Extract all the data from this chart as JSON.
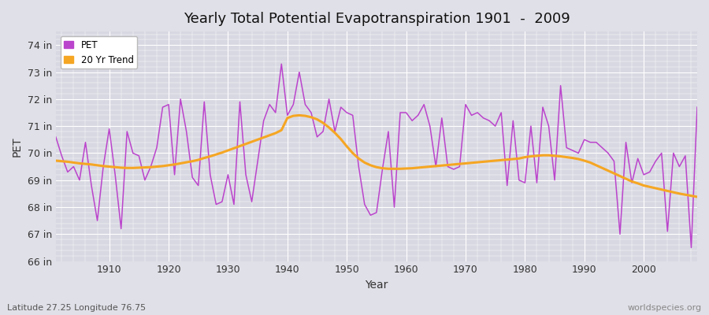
{
  "title": "Yearly Total Potential Evapotranspiration 1901  -  2009",
  "xlabel": "Year",
  "ylabel": "PET",
  "lat_lon_label": "Latitude 27.25 Longitude 76.75",
  "watermark": "worldspecies.org",
  "pet_color": "#bb44cc",
  "trend_color": "#f5a623",
  "bg_color": "#e0e0e8",
  "plot_bg_color": "#d8d8e2",
  "ylim": [
    66,
    74.5
  ],
  "xlim": [
    1901,
    2009
  ],
  "ytick_labels": [
    "66 in",
    "67 in",
    "68 in",
    "69 in",
    "70 in",
    "71 in",
    "72 in",
    "73 in",
    "74 in"
  ],
  "ytick_vals": [
    66,
    67,
    68,
    69,
    70,
    71,
    72,
    73,
    74
  ],
  "xtick_vals": [
    1910,
    1920,
    1930,
    1940,
    1950,
    1960,
    1970,
    1980,
    1990,
    2000
  ],
  "years": [
    1901,
    1902,
    1903,
    1904,
    1905,
    1906,
    1907,
    1908,
    1909,
    1910,
    1911,
    1912,
    1913,
    1914,
    1915,
    1916,
    1917,
    1918,
    1919,
    1920,
    1921,
    1922,
    1923,
    1924,
    1925,
    1926,
    1927,
    1928,
    1929,
    1930,
    1931,
    1932,
    1933,
    1934,
    1935,
    1936,
    1937,
    1938,
    1939,
    1940,
    1941,
    1942,
    1943,
    1944,
    1945,
    1946,
    1947,
    1948,
    1949,
    1950,
    1951,
    1952,
    1953,
    1954,
    1955,
    1956,
    1957,
    1958,
    1959,
    1960,
    1961,
    1962,
    1963,
    1964,
    1965,
    1966,
    1967,
    1968,
    1969,
    1970,
    1971,
    1972,
    1973,
    1974,
    1975,
    1976,
    1977,
    1978,
    1979,
    1980,
    1981,
    1982,
    1983,
    1984,
    1985,
    1986,
    1987,
    1988,
    1989,
    1990,
    1991,
    1992,
    1993,
    1994,
    1995,
    1996,
    1997,
    1998,
    1999,
    2000,
    2001,
    2002,
    2003,
    2004,
    2005,
    2006,
    2007,
    2008,
    2009
  ],
  "pet_values": [
    70.6,
    69.9,
    69.3,
    69.5,
    69.0,
    70.4,
    68.8,
    67.5,
    69.5,
    70.9,
    69.2,
    67.2,
    70.8,
    70.0,
    69.9,
    69.0,
    69.5,
    70.2,
    71.7,
    71.8,
    69.2,
    72.0,
    70.8,
    69.1,
    68.8,
    71.9,
    69.2,
    68.1,
    68.2,
    69.2,
    68.1,
    71.9,
    69.2,
    68.2,
    69.7,
    71.2,
    71.8,
    71.5,
    73.3,
    71.4,
    71.8,
    73.0,
    71.8,
    71.5,
    70.6,
    70.8,
    72.0,
    70.8,
    71.7,
    71.5,
    71.4,
    69.5,
    68.1,
    67.7,
    67.8,
    69.4,
    70.8,
    68.0,
    71.5,
    71.5,
    71.2,
    71.4,
    71.8,
    71.0,
    69.5,
    71.3,
    69.5,
    69.4,
    69.5,
    71.8,
    71.4,
    71.5,
    71.3,
    71.2,
    71.0,
    71.5,
    68.8,
    71.2,
    69.0,
    68.9,
    71.0,
    68.9,
    71.7,
    71.0,
    69.0,
    72.5,
    70.2,
    70.1,
    70.0,
    70.5,
    70.4,
    70.4,
    70.2,
    70.0,
    69.7,
    67.0,
    70.4,
    68.9,
    69.8,
    69.2,
    69.3,
    69.7,
    70.0,
    67.1,
    70.0,
    69.5,
    69.9,
    66.5,
    71.7
  ],
  "trend_values": [
    69.72,
    69.7,
    69.68,
    69.65,
    69.62,
    69.6,
    69.58,
    69.55,
    69.52,
    69.5,
    69.48,
    69.46,
    69.45,
    69.45,
    69.46,
    69.47,
    69.48,
    69.5,
    69.52,
    69.55,
    69.58,
    69.62,
    69.66,
    69.7,
    69.75,
    69.82,
    69.88,
    69.95,
    70.02,
    70.1,
    70.18,
    70.26,
    70.34,
    70.42,
    70.5,
    70.58,
    70.66,
    70.74,
    70.85,
    71.3,
    71.38,
    71.4,
    71.38,
    71.33,
    71.25,
    71.12,
    70.95,
    70.75,
    70.52,
    70.25,
    70.0,
    69.8,
    69.65,
    69.55,
    69.48,
    69.44,
    69.42,
    69.42,
    69.42,
    69.43,
    69.44,
    69.46,
    69.48,
    69.5,
    69.52,
    69.54,
    69.56,
    69.58,
    69.6,
    69.62,
    69.64,
    69.66,
    69.68,
    69.7,
    69.72,
    69.74,
    69.76,
    69.78,
    69.8,
    69.85,
    69.88,
    69.9,
    69.92,
    69.92,
    69.9,
    69.88,
    69.85,
    69.82,
    69.78,
    69.72,
    69.65,
    69.55,
    69.45,
    69.35,
    69.25,
    69.15,
    69.05,
    68.95,
    68.88,
    68.8,
    68.75,
    68.7,
    68.65,
    68.6,
    68.55,
    68.5,
    68.46,
    68.42,
    68.38
  ]
}
